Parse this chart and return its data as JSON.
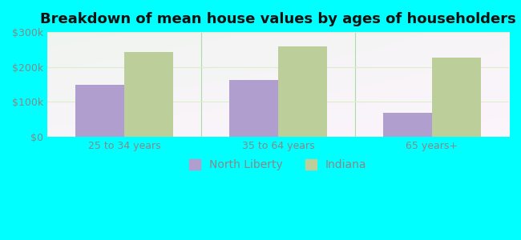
{
  "title": "Breakdown of mean house values by ages of householders",
  "categories": [
    "25 to 34 years",
    "35 to 64 years",
    "65 years+"
  ],
  "north_liberty_values": [
    150000,
    163000,
    68000
  ],
  "indiana_values": [
    242000,
    258000,
    228000
  ],
  "north_liberty_color": "#b09ece",
  "indiana_color": "#bccf9a",
  "ylim": [
    0,
    300000
  ],
  "yticks": [
    0,
    100000,
    200000,
    300000
  ],
  "ytick_labels": [
    "$0",
    "$100k",
    "$200k",
    "$300k"
  ],
  "background_color": "#00ffff",
  "legend_labels": [
    "North Liberty",
    "Indiana"
  ],
  "bar_width": 0.32,
  "title_fontsize": 13,
  "tick_fontsize": 9,
  "legend_fontsize": 10,
  "tick_color": "#888888",
  "divider_color": "#aaddaa",
  "grid_color": "#ddeecc"
}
